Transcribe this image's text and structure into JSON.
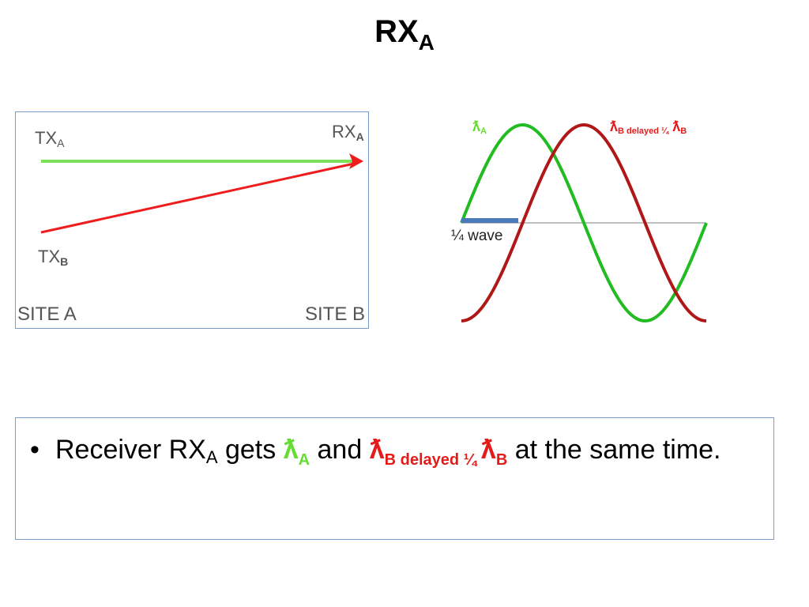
{
  "title": {
    "main": "RX",
    "sub": "A"
  },
  "site_diagram": {
    "tx_a": {
      "main": "TX",
      "sub": "A"
    },
    "rx_a": {
      "main": "RX",
      "sub": "A"
    },
    "tx_b": {
      "main": "TX",
      "sub": "B"
    },
    "site_a": "SITE A",
    "site_b": "SITE B",
    "colors": {
      "green": "#7ee05a",
      "red": "#ee1c1c"
    }
  },
  "wave_diagram": {
    "legend_a": {
      "symbol": "ƛ",
      "sub": "A"
    },
    "legend_b": {
      "symbol": "ƛ",
      "sub": "B delayed  ¼",
      "symbol2": "ƛ",
      "sub2": "B"
    },
    "quarter_label": "¼ wave",
    "colors": {
      "green": "#22bb22",
      "red": "#b01818",
      "bar": "#4a7ab8"
    }
  },
  "bullet": {
    "marker": "•",
    "part1": "Receiver RX",
    "part1_sub": "A",
    "part2": " gets ",
    "lambda_a": "ƛ",
    "lambda_a_sub": "A",
    "part3": " and ",
    "lambda_b": "ƛ",
    "lambda_b_sub": "B delayed  ¼ ",
    "lambda_b2": "ƛ",
    "lambda_b2_sub": "B",
    "part4": "  at the same time."
  }
}
